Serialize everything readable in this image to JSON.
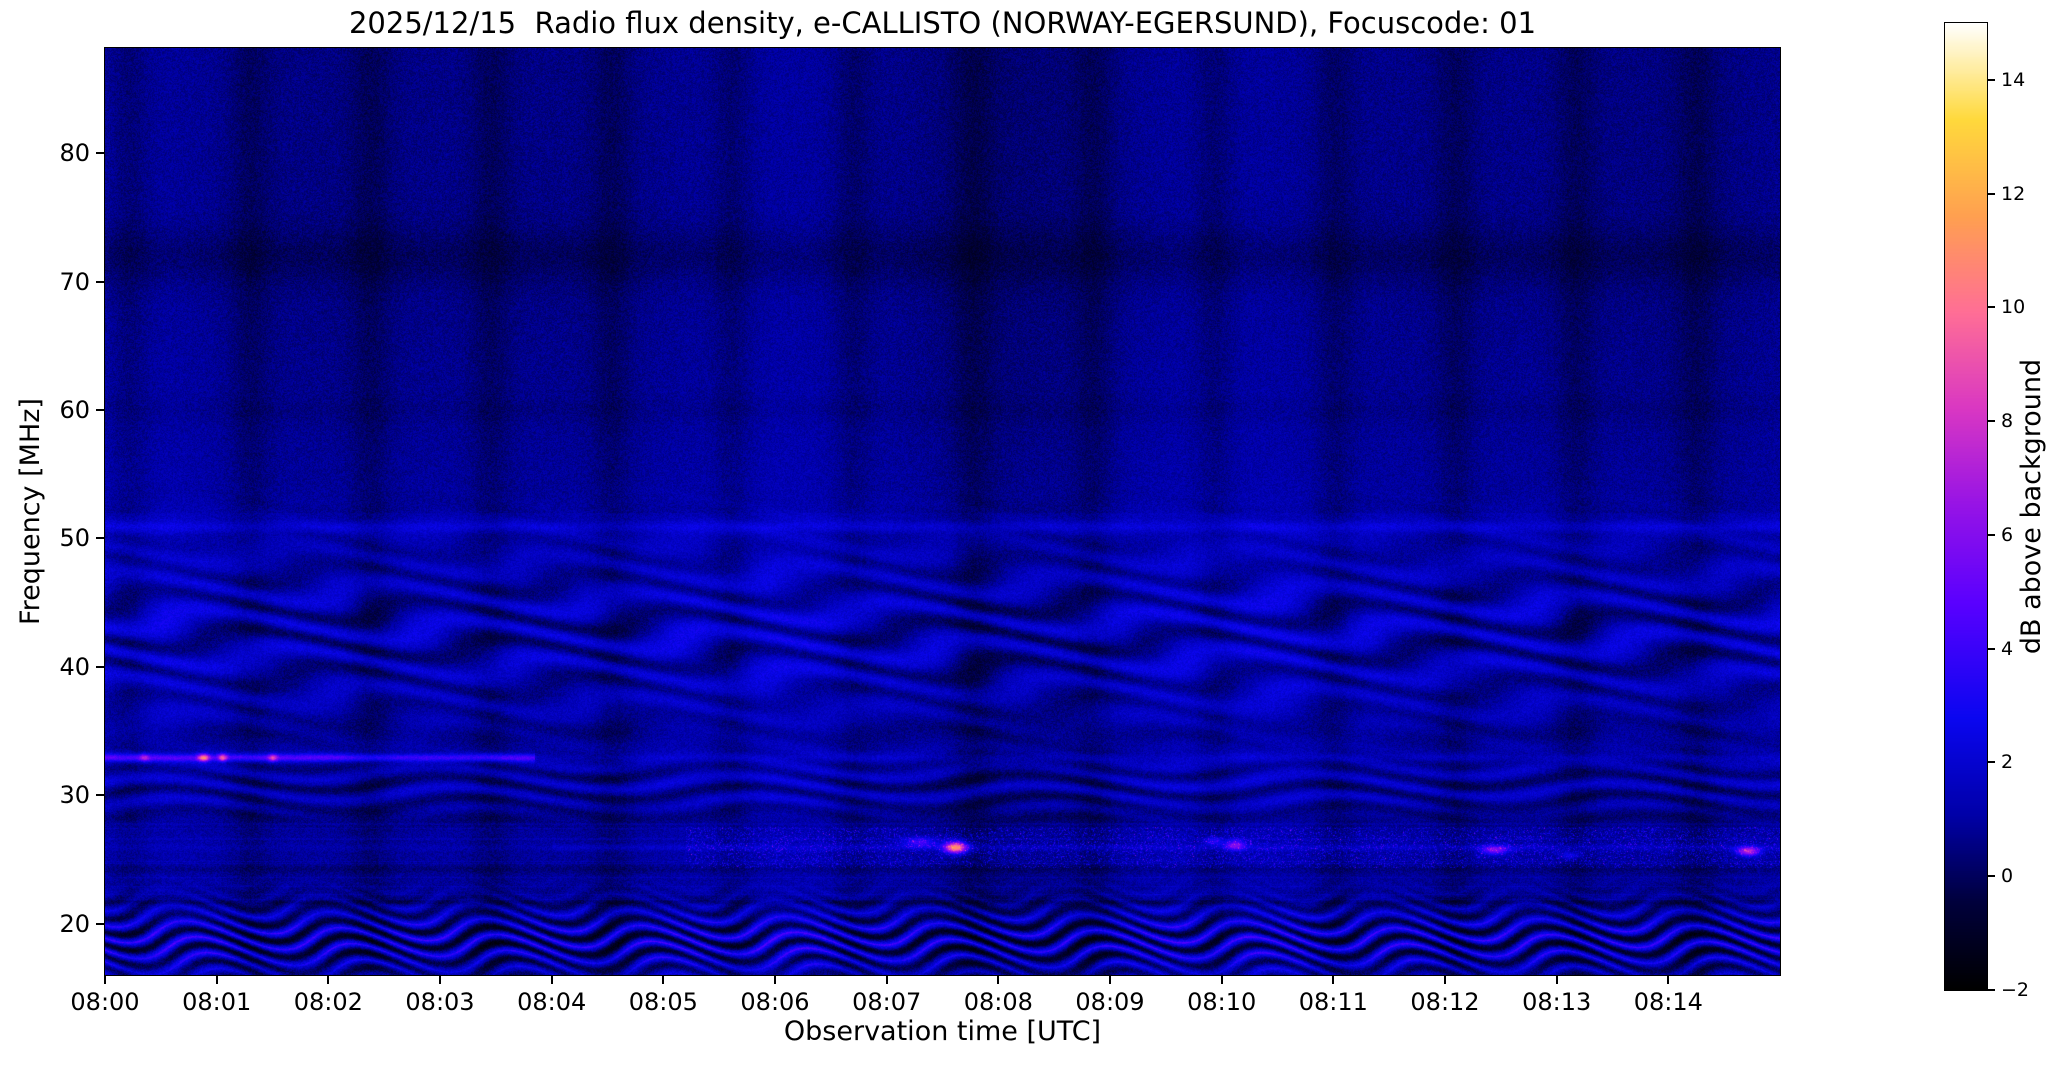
{
  "chart_data": {
    "type": "heatmap",
    "title": "2025/12/15  Radio flux density, e-CALLISTO (NORWAY-EGERSUND), Focuscode: 01",
    "x_axis": {
      "label": "Observation time [UTC]",
      "range_minutes": [
        0,
        15
      ],
      "ticks": [
        {
          "minute": 0,
          "label": "08:00"
        },
        {
          "minute": 1,
          "label": "08:01"
        },
        {
          "minute": 2,
          "label": "08:02"
        },
        {
          "minute": 3,
          "label": "08:03"
        },
        {
          "minute": 4,
          "label": "08:04"
        },
        {
          "minute": 5,
          "label": "08:05"
        },
        {
          "minute": 6,
          "label": "08:06"
        },
        {
          "minute": 7,
          "label": "08:07"
        },
        {
          "minute": 8,
          "label": "08:08"
        },
        {
          "minute": 9,
          "label": "08:09"
        },
        {
          "minute": 10,
          "label": "08:10"
        },
        {
          "minute": 11,
          "label": "08:11"
        },
        {
          "minute": 12,
          "label": "08:12"
        },
        {
          "minute": 13,
          "label": "08:13"
        },
        {
          "minute": 14,
          "label": "08:14"
        }
      ]
    },
    "y_axis": {
      "label": "Frequency [MHz]",
      "range_mhz": [
        16,
        88.2
      ],
      "ticks": [
        {
          "mhz": 80,
          "label": "80"
        },
        {
          "mhz": 70,
          "label": "70"
        },
        {
          "mhz": 60,
          "label": "60"
        },
        {
          "mhz": 50,
          "label": "50"
        },
        {
          "mhz": 40,
          "label": "40"
        },
        {
          "mhz": 30,
          "label": "30"
        },
        {
          "mhz": 20,
          "label": "20"
        }
      ]
    },
    "colorbar": {
      "label": "dB above background",
      "vmin": -2,
      "vmax": 15,
      "colormap": "gnuplot2-like",
      "ticks": [
        {
          "value": 14,
          "label": "14"
        },
        {
          "value": 12,
          "label": "12"
        },
        {
          "value": 10,
          "label": "10"
        },
        {
          "value": 8,
          "label": "8"
        },
        {
          "value": 6,
          "label": "6"
        },
        {
          "value": 4,
          "label": "4"
        },
        {
          "value": 2,
          "label": "2"
        },
        {
          "value": 0,
          "label": "0"
        },
        {
          "value": -2,
          "label": "−2"
        }
      ],
      "stops": [
        [
          0.0,
          "#000000"
        ],
        [
          0.09,
          "#00003c"
        ],
        [
          0.18,
          "#0000a8"
        ],
        [
          0.28,
          "#0a06f0"
        ],
        [
          0.4,
          "#5a00ff"
        ],
        [
          0.5,
          "#9613e6"
        ],
        [
          0.6,
          "#d937c3"
        ],
        [
          0.7,
          "#ff6e96"
        ],
        [
          0.8,
          "#ffa050"
        ],
        [
          0.9,
          "#ffd93c"
        ],
        [
          1.0,
          "#ffffff"
        ]
      ]
    },
    "texture": {
      "base_db": 0.9,
      "noise_amp": 1.1,
      "mid_bright": {
        "f0": 44,
        "sigma": 16,
        "amp": 0.5
      },
      "high_band": {
        "above_mhz": 52,
        "offset": -0.25
      },
      "low_band": {
        "below_mhz": 21.5,
        "offset": 0.2
      },
      "minute_bands": {
        "period_min": 1.08,
        "phase": 0.3,
        "center": 0.5,
        "width": 0.17,
        "amp": -0.6
      },
      "slow_variation": [
        {
          "period_min": 5.1,
          "phase": 1.0,
          "amp": 0.22
        },
        {
          "period_min": 3.3,
          "phase": 2.0,
          "amp": 0.15
        }
      ],
      "h_lines": [
        {
          "f": 72.0,
          "sigma": 2.2,
          "amp": -0.55
        },
        {
          "f": 60.0,
          "sigma": 1.0,
          "amp": -0.2
        },
        {
          "f": 50.9,
          "sigma": 0.45,
          "amp": 0.9
        },
        {
          "f": 34.8,
          "sigma": 0.9,
          "amp": -0.4
        },
        {
          "f": 28.2,
          "sigma": 0.8,
          "amp": -0.45
        },
        {
          "f": 24.2,
          "sigma": 0.35,
          "amp": -0.5
        },
        {
          "f": 21.6,
          "sigma": 0.3,
          "amp": -0.6
        }
      ],
      "line_33mhz": {
        "f": 32.9,
        "sigma": 0.3,
        "amp_early": 3.2,
        "amp_late": 0.5,
        "t_break": 3.85
      },
      "line_26mhz": {
        "f": 25.9,
        "sigma": 0.25,
        "amp_early": 0.3,
        "amp_late": 0.8,
        "t_break": 4.0
      },
      "ripples": [
        {
          "f0": 42.5,
          "fsig": 6.5,
          "fper": 2.7,
          "tper": 2.1,
          "wob": 2.2,
          "fmix": 0.12,
          "drift": 0.8,
          "amp": 1.15,
          "spike": 0
        },
        {
          "f0": 30.6,
          "fsig": 2.0,
          "fper": 1.6,
          "tper": 2.6,
          "wob": 2.8,
          "fmix": 0.05,
          "drift": 1.1,
          "amp": 1.0,
          "spike": 0
        },
        {
          "f0": 18.6,
          "fsig": 2.7,
          "fper": 1.2,
          "tper": 1.35,
          "wob": 5.0,
          "fmix": 0.06,
          "drift": 2.0,
          "amp": 2.1,
          "spike": 14
        }
      ],
      "speckle_band": {
        "fmin": 24.3,
        "fmax": 27.5,
        "tmin": 5.2
      },
      "streak_band": {
        "fmin": 21.0,
        "fmax": 28.0,
        "amp": 0.35
      },
      "blobs": [
        {
          "t": 7.62,
          "f": 25.9,
          "amp": 10.0,
          "st": 0.1,
          "sf": 0.45
        },
        {
          "t": 7.3,
          "f": 26.3,
          "amp": 3.0,
          "st": 0.15,
          "sf": 0.4
        },
        {
          "t": 10.12,
          "f": 26.1,
          "amp": 4.5,
          "st": 0.09,
          "sf": 0.4
        },
        {
          "t": 9.93,
          "f": 26.4,
          "amp": 2.5,
          "st": 0.08,
          "sf": 0.35
        },
        {
          "t": 12.45,
          "f": 25.7,
          "amp": 4.5,
          "st": 0.12,
          "sf": 0.35
        },
        {
          "t": 13.12,
          "f": 25.3,
          "amp": 2.2,
          "st": 0.1,
          "sf": 0.3
        },
        {
          "t": 14.72,
          "f": 25.6,
          "amp": 6.5,
          "st": 0.1,
          "sf": 0.35
        },
        {
          "t": 0.88,
          "f": 32.9,
          "amp": 7.0,
          "st": 0.05,
          "sf": 0.3
        },
        {
          "t": 1.05,
          "f": 32.9,
          "amp": 5.5,
          "st": 0.04,
          "sf": 0.3
        },
        {
          "t": 1.5,
          "f": 32.9,
          "amp": 4.5,
          "st": 0.04,
          "sf": 0.3
        },
        {
          "t": 0.35,
          "f": 32.9,
          "amp": 3.0,
          "st": 0.04,
          "sf": 0.3
        }
      ]
    }
  }
}
